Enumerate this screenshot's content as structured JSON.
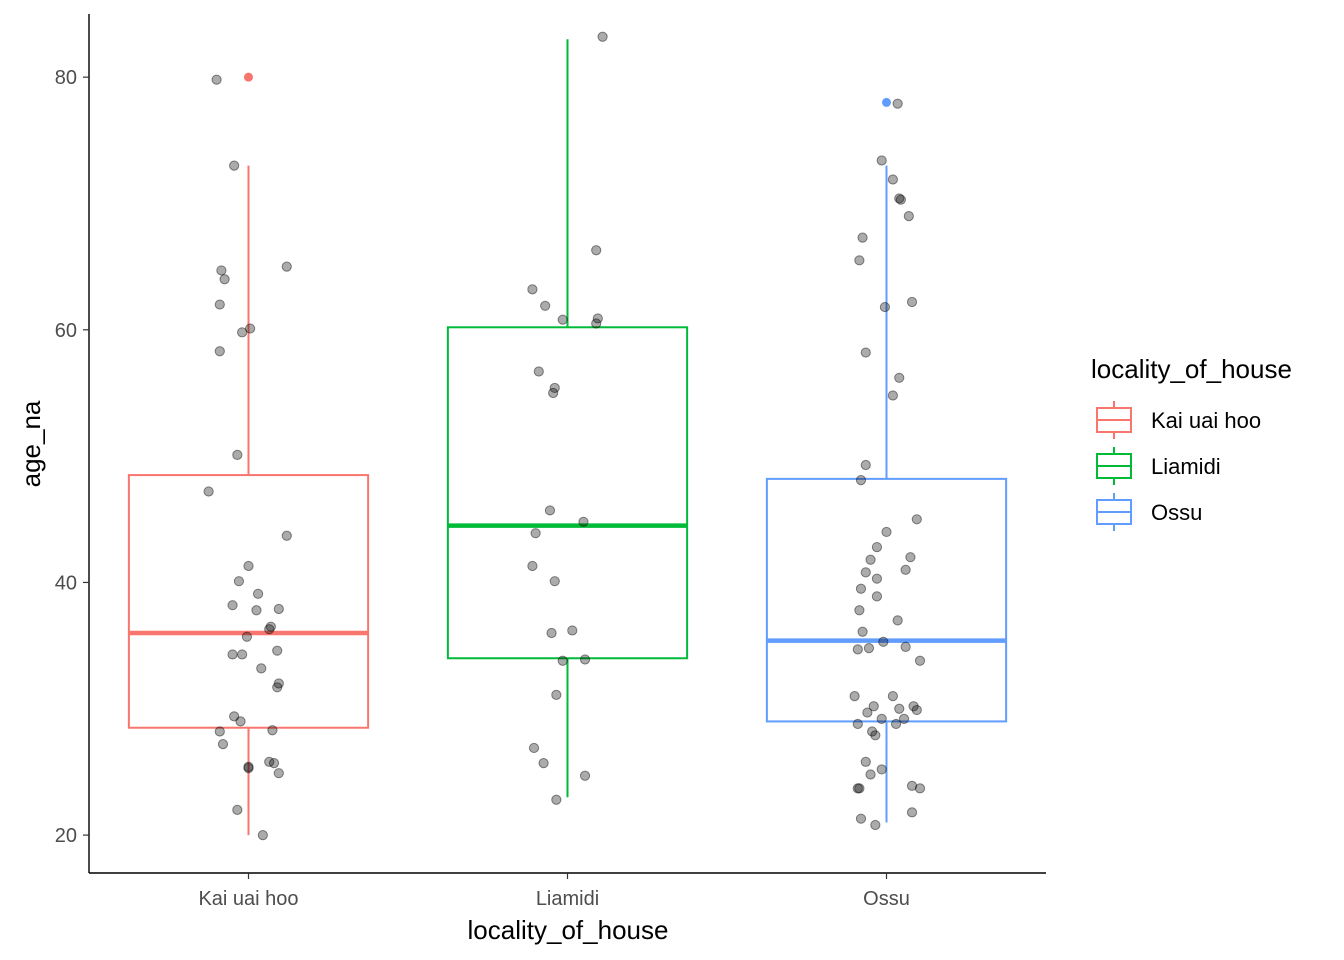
{
  "chart_data": {
    "type": "boxplot",
    "xlabel": "locality_of_house",
    "ylabel": "age_na",
    "ylim": [
      17,
      85
    ],
    "y_ticks": [
      20,
      40,
      60,
      80
    ],
    "grid": false,
    "legend": {
      "title": "locality_of_house",
      "position": "right",
      "entries": [
        "Kai uai hoo",
        "Liamidi",
        "Ossu"
      ]
    },
    "categories": [
      "Kai uai hoo",
      "Liamidi",
      "Ossu"
    ],
    "colors": {
      "Kai uai hoo": "#F8766D",
      "Liamidi": "#00BA38",
      "Ossu": "#619CFF"
    },
    "boxes": [
      {
        "category": "Kai uai hoo",
        "lower_whisker": 20,
        "q1": 28.5,
        "median": 36,
        "q3": 48.5,
        "upper_whisker": 73,
        "outliers": [
          80
        ]
      },
      {
        "category": "Liamidi",
        "lower_whisker": 23,
        "q1": 34,
        "median": 44.5,
        "q3": 60.2,
        "upper_whisker": 83,
        "outliers": []
      },
      {
        "category": "Ossu",
        "lower_whisker": 21,
        "q1": 29,
        "median": 35.4,
        "q3": 48.2,
        "upper_whisker": 73,
        "outliers": [
          78
        ]
      }
    ],
    "points": [
      {
        "category": "Kai uai hoo",
        "values": [
          {
            "x": -0.2,
            "y": 79.8
          },
          {
            "x": -0.09,
            "y": 73
          },
          {
            "x": 0.24,
            "y": 65
          },
          {
            "x": -0.17,
            "y": 64.7
          },
          {
            "x": -0.15,
            "y": 64
          },
          {
            "x": -0.18,
            "y": 62
          },
          {
            "x": 0.01,
            "y": 60.1
          },
          {
            "x": -0.04,
            "y": 59.8
          },
          {
            "x": -0.18,
            "y": 58.3
          },
          {
            "x": -0.07,
            "y": 50.1
          },
          {
            "x": -0.25,
            "y": 47.2
          },
          {
            "x": 0.24,
            "y": 43.7
          },
          {
            "x": 0.0,
            "y": 41.3
          },
          {
            "x": -0.06,
            "y": 40.1
          },
          {
            "x": 0.06,
            "y": 39.1
          },
          {
            "x": -0.1,
            "y": 38.2
          },
          {
            "x": 0.05,
            "y": 37.8
          },
          {
            "x": 0.19,
            "y": 37.9
          },
          {
            "x": 0.14,
            "y": 36.5
          },
          {
            "x": 0.13,
            "y": 36.3
          },
          {
            "x": -0.01,
            "y": 35.7
          },
          {
            "x": 0.18,
            "y": 34.6
          },
          {
            "x": -0.1,
            "y": 34.3
          },
          {
            "x": -0.04,
            "y": 34.3
          },
          {
            "x": 0.08,
            "y": 33.2
          },
          {
            "x": 0.19,
            "y": 32
          },
          {
            "x": 0.18,
            "y": 31.7
          },
          {
            "x": -0.09,
            "y": 29.4
          },
          {
            "x": -0.05,
            "y": 29
          },
          {
            "x": 0.15,
            "y": 28.3
          },
          {
            "x": -0.18,
            "y": 28.2
          },
          {
            "x": -0.16,
            "y": 27.2
          },
          {
            "x": 0.13,
            "y": 25.8
          },
          {
            "x": 0.16,
            "y": 25.7
          },
          {
            "x": 0.0,
            "y": 25.4
          },
          {
            "x": 0.0,
            "y": 25.3
          },
          {
            "x": 0.19,
            "y": 24.9
          },
          {
            "x": -0.07,
            "y": 22
          },
          {
            "x": 0.09,
            "y": 20
          }
        ]
      },
      {
        "category": "Liamidi",
        "values": [
          {
            "x": 0.22,
            "y": 83.2
          },
          {
            "x": 0.18,
            "y": 66.3
          },
          {
            "x": -0.22,
            "y": 63.2
          },
          {
            "x": -0.14,
            "y": 61.9
          },
          {
            "x": -0.03,
            "y": 60.8
          },
          {
            "x": 0.19,
            "y": 60.9
          },
          {
            "x": 0.18,
            "y": 60.5
          },
          {
            "x": -0.18,
            "y": 56.7
          },
          {
            "x": -0.08,
            "y": 55.4
          },
          {
            "x": -0.09,
            "y": 55
          },
          {
            "x": -0.11,
            "y": 45.7
          },
          {
            "x": 0.1,
            "y": 44.8
          },
          {
            "x": -0.2,
            "y": 43.9
          },
          {
            "x": -0.22,
            "y": 41.3
          },
          {
            "x": -0.08,
            "y": 40.1
          },
          {
            "x": 0.03,
            "y": 36.2
          },
          {
            "x": -0.1,
            "y": 36
          },
          {
            "x": -0.03,
            "y": 33.8
          },
          {
            "x": 0.11,
            "y": 33.9
          },
          {
            "x": -0.07,
            "y": 31.1
          },
          {
            "x": -0.21,
            "y": 26.9
          },
          {
            "x": -0.15,
            "y": 25.7
          },
          {
            "x": 0.11,
            "y": 24.7
          },
          {
            "x": -0.07,
            "y": 22.8
          }
        ]
      },
      {
        "category": "Ossu",
        "values": [
          {
            "x": 0.07,
            "y": 77.9
          },
          {
            "x": -0.03,
            "y": 73.4
          },
          {
            "x": 0.04,
            "y": 71.9
          },
          {
            "x": 0.08,
            "y": 70.4
          },
          {
            "x": 0.09,
            "y": 70.3
          },
          {
            "x": 0.14,
            "y": 69
          },
          {
            "x": -0.15,
            "y": 67.3
          },
          {
            "x": -0.17,
            "y": 65.5
          },
          {
            "x": 0.16,
            "y": 62.2
          },
          {
            "x": -0.01,
            "y": 61.8
          },
          {
            "x": -0.13,
            "y": 58.2
          },
          {
            "x": 0.08,
            "y": 56.2
          },
          {
            "x": 0.04,
            "y": 54.8
          },
          {
            "x": -0.13,
            "y": 49.3
          },
          {
            "x": -0.16,
            "y": 48.1
          },
          {
            "x": 0.19,
            "y": 45
          },
          {
            "x": 0.0,
            "y": 44
          },
          {
            "x": -0.06,
            "y": 42.8
          },
          {
            "x": -0.1,
            "y": 41.8
          },
          {
            "x": 0.15,
            "y": 42
          },
          {
            "x": -0.13,
            "y": 40.8
          },
          {
            "x": 0.12,
            "y": 41
          },
          {
            "x": -0.06,
            "y": 40.3
          },
          {
            "x": -0.16,
            "y": 39.5
          },
          {
            "x": -0.06,
            "y": 38.9
          },
          {
            "x": -0.17,
            "y": 37.8
          },
          {
            "x": 0.07,
            "y": 37
          },
          {
            "x": -0.15,
            "y": 36.1
          },
          {
            "x": -0.02,
            "y": 35.3
          },
          {
            "x": -0.18,
            "y": 34.7
          },
          {
            "x": -0.11,
            "y": 34.8
          },
          {
            "x": 0.12,
            "y": 34.9
          },
          {
            "x": 0.21,
            "y": 33.8
          },
          {
            "x": -0.2,
            "y": 31
          },
          {
            "x": 0.04,
            "y": 31
          },
          {
            "x": -0.08,
            "y": 30.2
          },
          {
            "x": 0.08,
            "y": 30
          },
          {
            "x": 0.17,
            "y": 30.2
          },
          {
            "x": -0.12,
            "y": 29.7
          },
          {
            "x": 0.19,
            "y": 29.9
          },
          {
            "x": -0.03,
            "y": 29.2
          },
          {
            "x": 0.11,
            "y": 29.2
          },
          {
            "x": 0.06,
            "y": 28.8
          },
          {
            "x": -0.18,
            "y": 28.8
          },
          {
            "x": -0.09,
            "y": 28.2
          },
          {
            "x": -0.07,
            "y": 27.9
          },
          {
            "x": -0.13,
            "y": 25.8
          },
          {
            "x": -0.03,
            "y": 25.2
          },
          {
            "x": -0.1,
            "y": 24.8
          },
          {
            "x": 0.16,
            "y": 23.9
          },
          {
            "x": 0.21,
            "y": 23.7
          },
          {
            "x": -0.18,
            "y": 23.7
          },
          {
            "x": -0.17,
            "y": 23.7
          },
          {
            "x": 0.16,
            "y": 21.8
          },
          {
            "x": -0.16,
            "y": 21.3
          },
          {
            "x": -0.07,
            "y": 20.8
          }
        ]
      }
    ]
  }
}
